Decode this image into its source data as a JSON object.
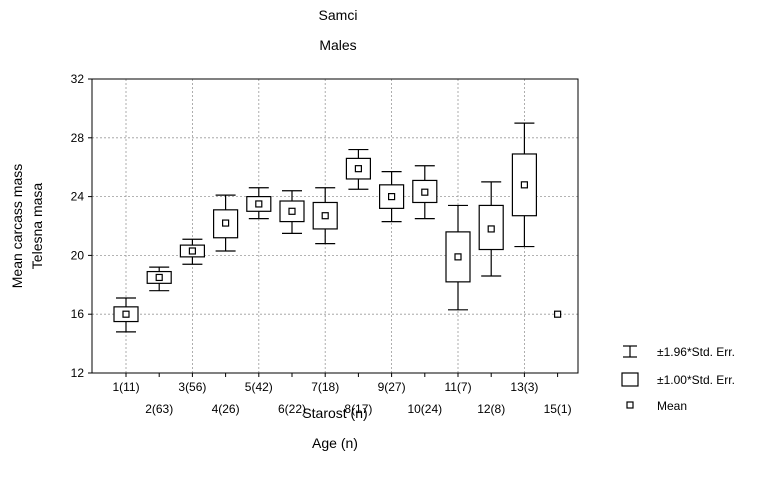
{
  "chart_data": {
    "type": "box",
    "title": "Samci",
    "subtitle": "Males",
    "xlabel": "Starost (n)",
    "xlabel2": "Age (n)",
    "ylabel": "Mean carcass mass",
    "ylabel2": "Telesna masa",
    "ylim": [
      12,
      32
    ],
    "yticks": [
      12,
      16,
      20,
      24,
      28,
      32
    ],
    "grid": true,
    "legend_position": "right",
    "categories": [
      "1(11)",
      "2(63)",
      "3(56)",
      "4(26)",
      "5(42)",
      "6(22)",
      "7(18)",
      "8(17)",
      "9(27)",
      "10(24)",
      "11(7)",
      "12(8)",
      "13(3)",
      "15(1)"
    ],
    "mean": [
      16.0,
      18.5,
      20.3,
      22.2,
      23.5,
      23.0,
      22.7,
      25.9,
      24.0,
      24.3,
      19.9,
      21.8,
      24.8,
      16.0
    ],
    "se_low": [
      15.5,
      18.1,
      19.9,
      21.2,
      23.0,
      22.3,
      21.8,
      25.2,
      23.2,
      23.6,
      18.2,
      20.4,
      22.7,
      null
    ],
    "se_high": [
      16.5,
      18.9,
      20.7,
      23.1,
      24.0,
      23.7,
      23.6,
      26.6,
      24.8,
      25.1,
      21.6,
      23.4,
      26.9,
      null
    ],
    "ci_low": [
      14.8,
      17.6,
      19.4,
      20.3,
      22.5,
      21.5,
      20.8,
      24.5,
      22.3,
      22.5,
      16.3,
      18.6,
      20.6,
      null
    ],
    "ci_high": [
      17.1,
      19.2,
      21.1,
      24.1,
      24.6,
      24.4,
      24.6,
      27.2,
      25.7,
      26.1,
      23.4,
      25.0,
      29.0,
      null
    ],
    "legend": [
      "±1.96*Std. Err.",
      "±1.00*Std. Err.",
      "Mean"
    ]
  }
}
